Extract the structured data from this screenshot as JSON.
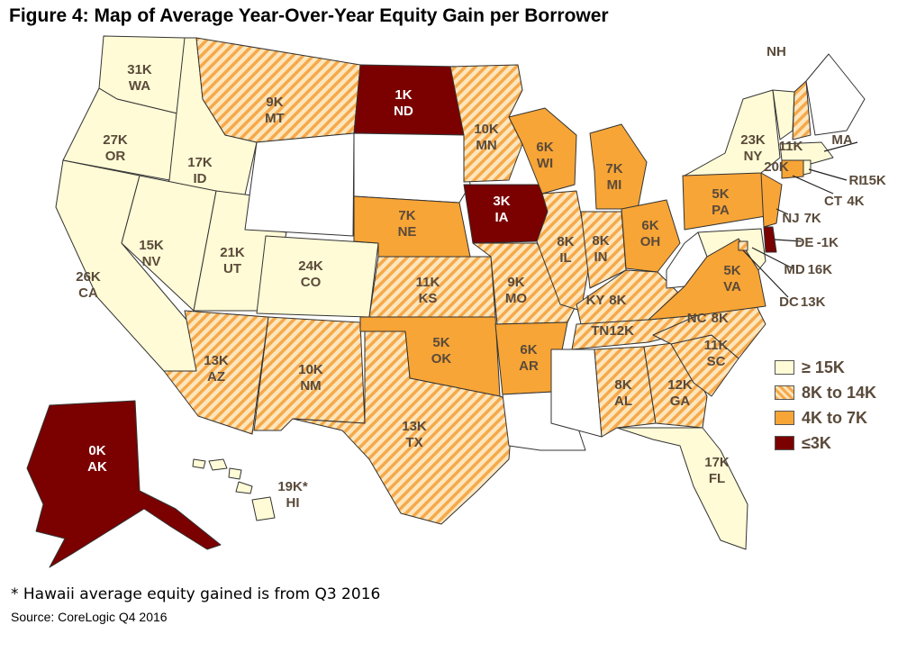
{
  "title": "Figure 4: Map of Average Year-Over-Year Equity Gain per Borrower",
  "colors": {
    "tier1": "#fffbd6",
    "tier2_base": "#fde6bd",
    "tier2_stripe": "#f6a94a",
    "tier3": "#f7a536",
    "tier4": "#7b0000",
    "nodata": "#ffffff"
  },
  "legend": [
    {
      "label": "≥ 15K",
      "tier": "t1"
    },
    {
      "label": "8K to 14K",
      "tier": "t2"
    },
    {
      "label": "4K to 7K",
      "tier": "t3"
    },
    {
      "label": "≤3K",
      "tier": "t4"
    }
  ],
  "states": [
    {
      "code": "WA",
      "value": "31K",
      "tier": "t1"
    },
    {
      "code": "OR",
      "value": "27K",
      "tier": "t1"
    },
    {
      "code": "CA",
      "value": "26K",
      "tier": "t1"
    },
    {
      "code": "ID",
      "value": "17K",
      "tier": "t1"
    },
    {
      "code": "NV",
      "value": "15K",
      "tier": "t1"
    },
    {
      "code": "UT",
      "value": "21K",
      "tier": "t1"
    },
    {
      "code": "CO",
      "value": "24K",
      "tier": "t1"
    },
    {
      "code": "MT",
      "value": "9K",
      "tier": "t2"
    },
    {
      "code": "AZ",
      "value": "13K",
      "tier": "t2"
    },
    {
      "code": "NM",
      "value": "10K",
      "tier": "t2"
    },
    {
      "code": "TX",
      "value": "13K",
      "tier": "t2"
    },
    {
      "code": "KS",
      "value": "11K",
      "tier": "t2"
    },
    {
      "code": "NE",
      "value": "7K",
      "tier": "t3"
    },
    {
      "code": "OK",
      "value": "5K",
      "tier": "t3"
    },
    {
      "code": "ND",
      "value": "1K",
      "tier": "t4"
    },
    {
      "code": "MN",
      "value": "10K",
      "tier": "t2"
    },
    {
      "code": "IA",
      "value": "3K",
      "tier": "t4"
    },
    {
      "code": "MO",
      "value": "9K",
      "tier": "t2"
    },
    {
      "code": "AR",
      "value": "6K",
      "tier": "t3"
    },
    {
      "code": "WI",
      "value": "6K",
      "tier": "t3"
    },
    {
      "code": "IL",
      "value": "8K",
      "tier": "t2"
    },
    {
      "code": "MI",
      "value": "7K",
      "tier": "t3"
    },
    {
      "code": "IN",
      "value": "8K",
      "tier": "t2"
    },
    {
      "code": "OH",
      "value": "6K",
      "tier": "t3"
    },
    {
      "code": "KY",
      "value": "8K",
      "tier": "t2"
    },
    {
      "code": "TN",
      "value": "12K",
      "tier": "t2"
    },
    {
      "code": "AL",
      "value": "8K",
      "tier": "t2"
    },
    {
      "code": "GA",
      "value": "12K",
      "tier": "t2"
    },
    {
      "code": "FL",
      "value": "17K",
      "tier": "t1"
    },
    {
      "code": "SC",
      "value": "11K",
      "tier": "t2"
    },
    {
      "code": "NC",
      "value": "8K",
      "tier": "t2"
    },
    {
      "code": "VA",
      "value": "5K",
      "tier": "t3"
    },
    {
      "code": "PA",
      "value": "5K",
      "tier": "t3"
    },
    {
      "code": "NY",
      "value": "23K",
      "tier": "t1"
    },
    {
      "code": "NH",
      "value": "11K",
      "tier": "t2"
    },
    {
      "code": "VT",
      "value": "",
      "tier": "t1"
    },
    {
      "code": "MA",
      "value": "20K",
      "tier": "t1"
    },
    {
      "code": "RI",
      "value": "15K",
      "tier": "t1"
    },
    {
      "code": "CT",
      "value": "4K",
      "tier": "t3"
    },
    {
      "code": "NJ",
      "value": "7K",
      "tier": "t3"
    },
    {
      "code": "DE",
      "value": "-1K",
      "tier": "t4"
    },
    {
      "code": "MD",
      "value": "16K",
      "tier": "t1"
    },
    {
      "code": "DC",
      "value": "13K",
      "tier": "t2"
    },
    {
      "code": "AK",
      "value": "0K",
      "tier": "t4"
    },
    {
      "code": "HI",
      "value": "19K*",
      "tier": "t1"
    },
    {
      "code": "WY",
      "value": "",
      "tier": "none"
    },
    {
      "code": "SD",
      "value": "",
      "tier": "none"
    },
    {
      "code": "ME",
      "value": "",
      "tier": "none"
    },
    {
      "code": "WV",
      "value": "",
      "tier": "none"
    },
    {
      "code": "MS",
      "value": "",
      "tier": "none"
    },
    {
      "code": "LA",
      "value": "",
      "tier": "none"
    }
  ],
  "footnote": "* Hawaii average equity gained is from Q3 2016",
  "source": "Source: CoreLogic Q4 2016"
}
